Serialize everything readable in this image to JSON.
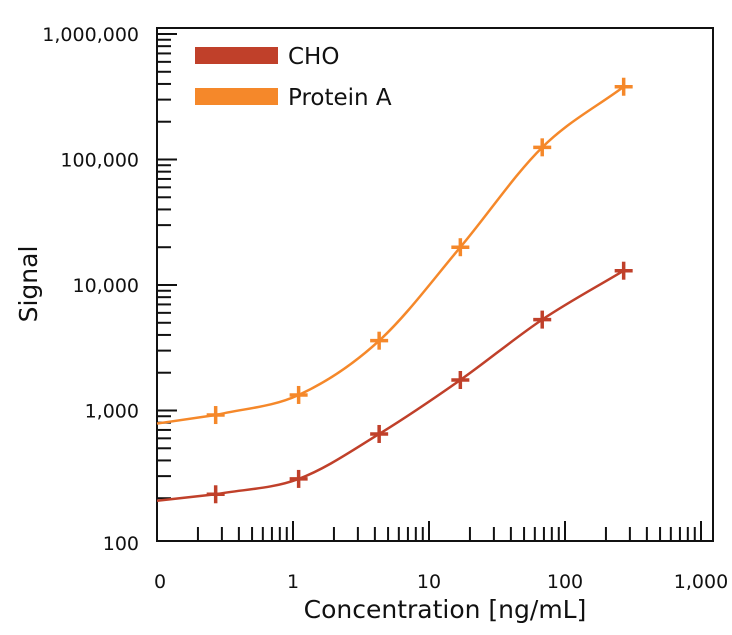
{
  "chart_data": {
    "type": "line",
    "title": "",
    "xlabel": "Concentration  [ng/mL]",
    "ylabel": "Signal",
    "x_scale": "log",
    "y_scale": "log",
    "xlim": [
      0.1,
      1000
    ],
    "ylim": [
      100,
      1000000
    ],
    "x_ticks": [
      {
        "value": 0.1,
        "label": "0"
      },
      {
        "value": 1,
        "label": "1"
      },
      {
        "value": 10,
        "label": "10"
      },
      {
        "value": 100,
        "label": "100"
      },
      {
        "value": 1000,
        "label": "1,000"
      }
    ],
    "y_ticks": [
      {
        "value": 100,
        "label": "100"
      },
      {
        "value": 1000,
        "label": "1,000"
      },
      {
        "value": 10000,
        "label": "10,000"
      },
      {
        "value": 100000,
        "label": "100,000"
      },
      {
        "value": 1000000,
        "label": "1,000,000"
      }
    ],
    "grid": false,
    "legend_position": "top-left",
    "series": [
      {
        "name": "CHO",
        "color": "#c0402a",
        "x": [
          0.27,
          1.1,
          4.3,
          17,
          68,
          270
        ],
        "y": [
          215,
          285,
          650,
          1750,
          5300,
          13000
        ]
      },
      {
        "name": "Protein A",
        "color": "#f5882a",
        "x": [
          0.27,
          1.1,
          4.3,
          17,
          68,
          270
        ],
        "y": [
          920,
          1330,
          3600,
          20000,
          125000,
          380000
        ]
      }
    ]
  }
}
